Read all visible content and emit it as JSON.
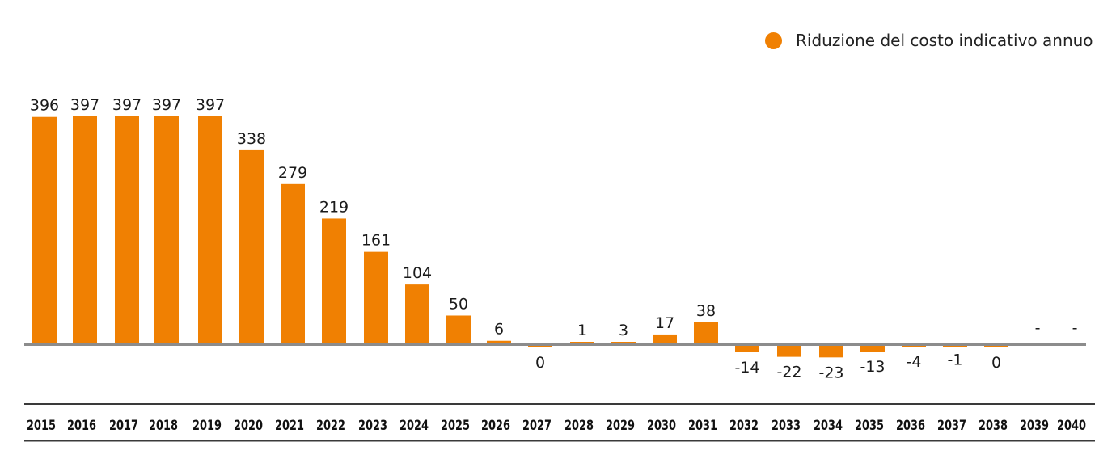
{
  "legend": {
    "label": "Riduzione del costo indicativo annuo"
  },
  "colors": {
    "bar": "#F08002",
    "axis": "#8c8c8c",
    "band": "#3a3a3a",
    "text": "#1a1a1a"
  },
  "chart_data": {
    "type": "bar",
    "title": "",
    "xlabel": "",
    "ylabel": "",
    "grid": false,
    "legend_position": "top-right",
    "categories": [
      "2015",
      "2016",
      "2017",
      "2018",
      "2019",
      "2020",
      "2021",
      "2022",
      "2023",
      "2024",
      "2025",
      "2026",
      "2027",
      "2028",
      "2029",
      "2030",
      "2031",
      "2032",
      "2033",
      "2034",
      "2035",
      "2036",
      "2037",
      "2038",
      "2039",
      "2040"
    ],
    "series": [
      {
        "name": "Riduzione del costo indicativo annuo",
        "values": [
          396,
          397,
          397,
          397,
          397,
          338,
          279,
          219,
          161,
          104,
          50,
          6,
          0,
          1,
          3,
          17,
          38,
          -14,
          -22,
          -23,
          -13,
          -4,
          -1,
          0,
          null,
          null
        ],
        "labels": [
          "396",
          "397",
          "397",
          "397",
          "397",
          "338",
          "279",
          "219",
          "161",
          "104",
          "50",
          "6",
          "0",
          "1",
          "3",
          "17",
          "38",
          "-14",
          "-22",
          "-23",
          "-13",
          "-4",
          "-1",
          "0",
          "-",
          "-"
        ]
      }
    ],
    "ylim": [
      -25,
      400
    ]
  }
}
